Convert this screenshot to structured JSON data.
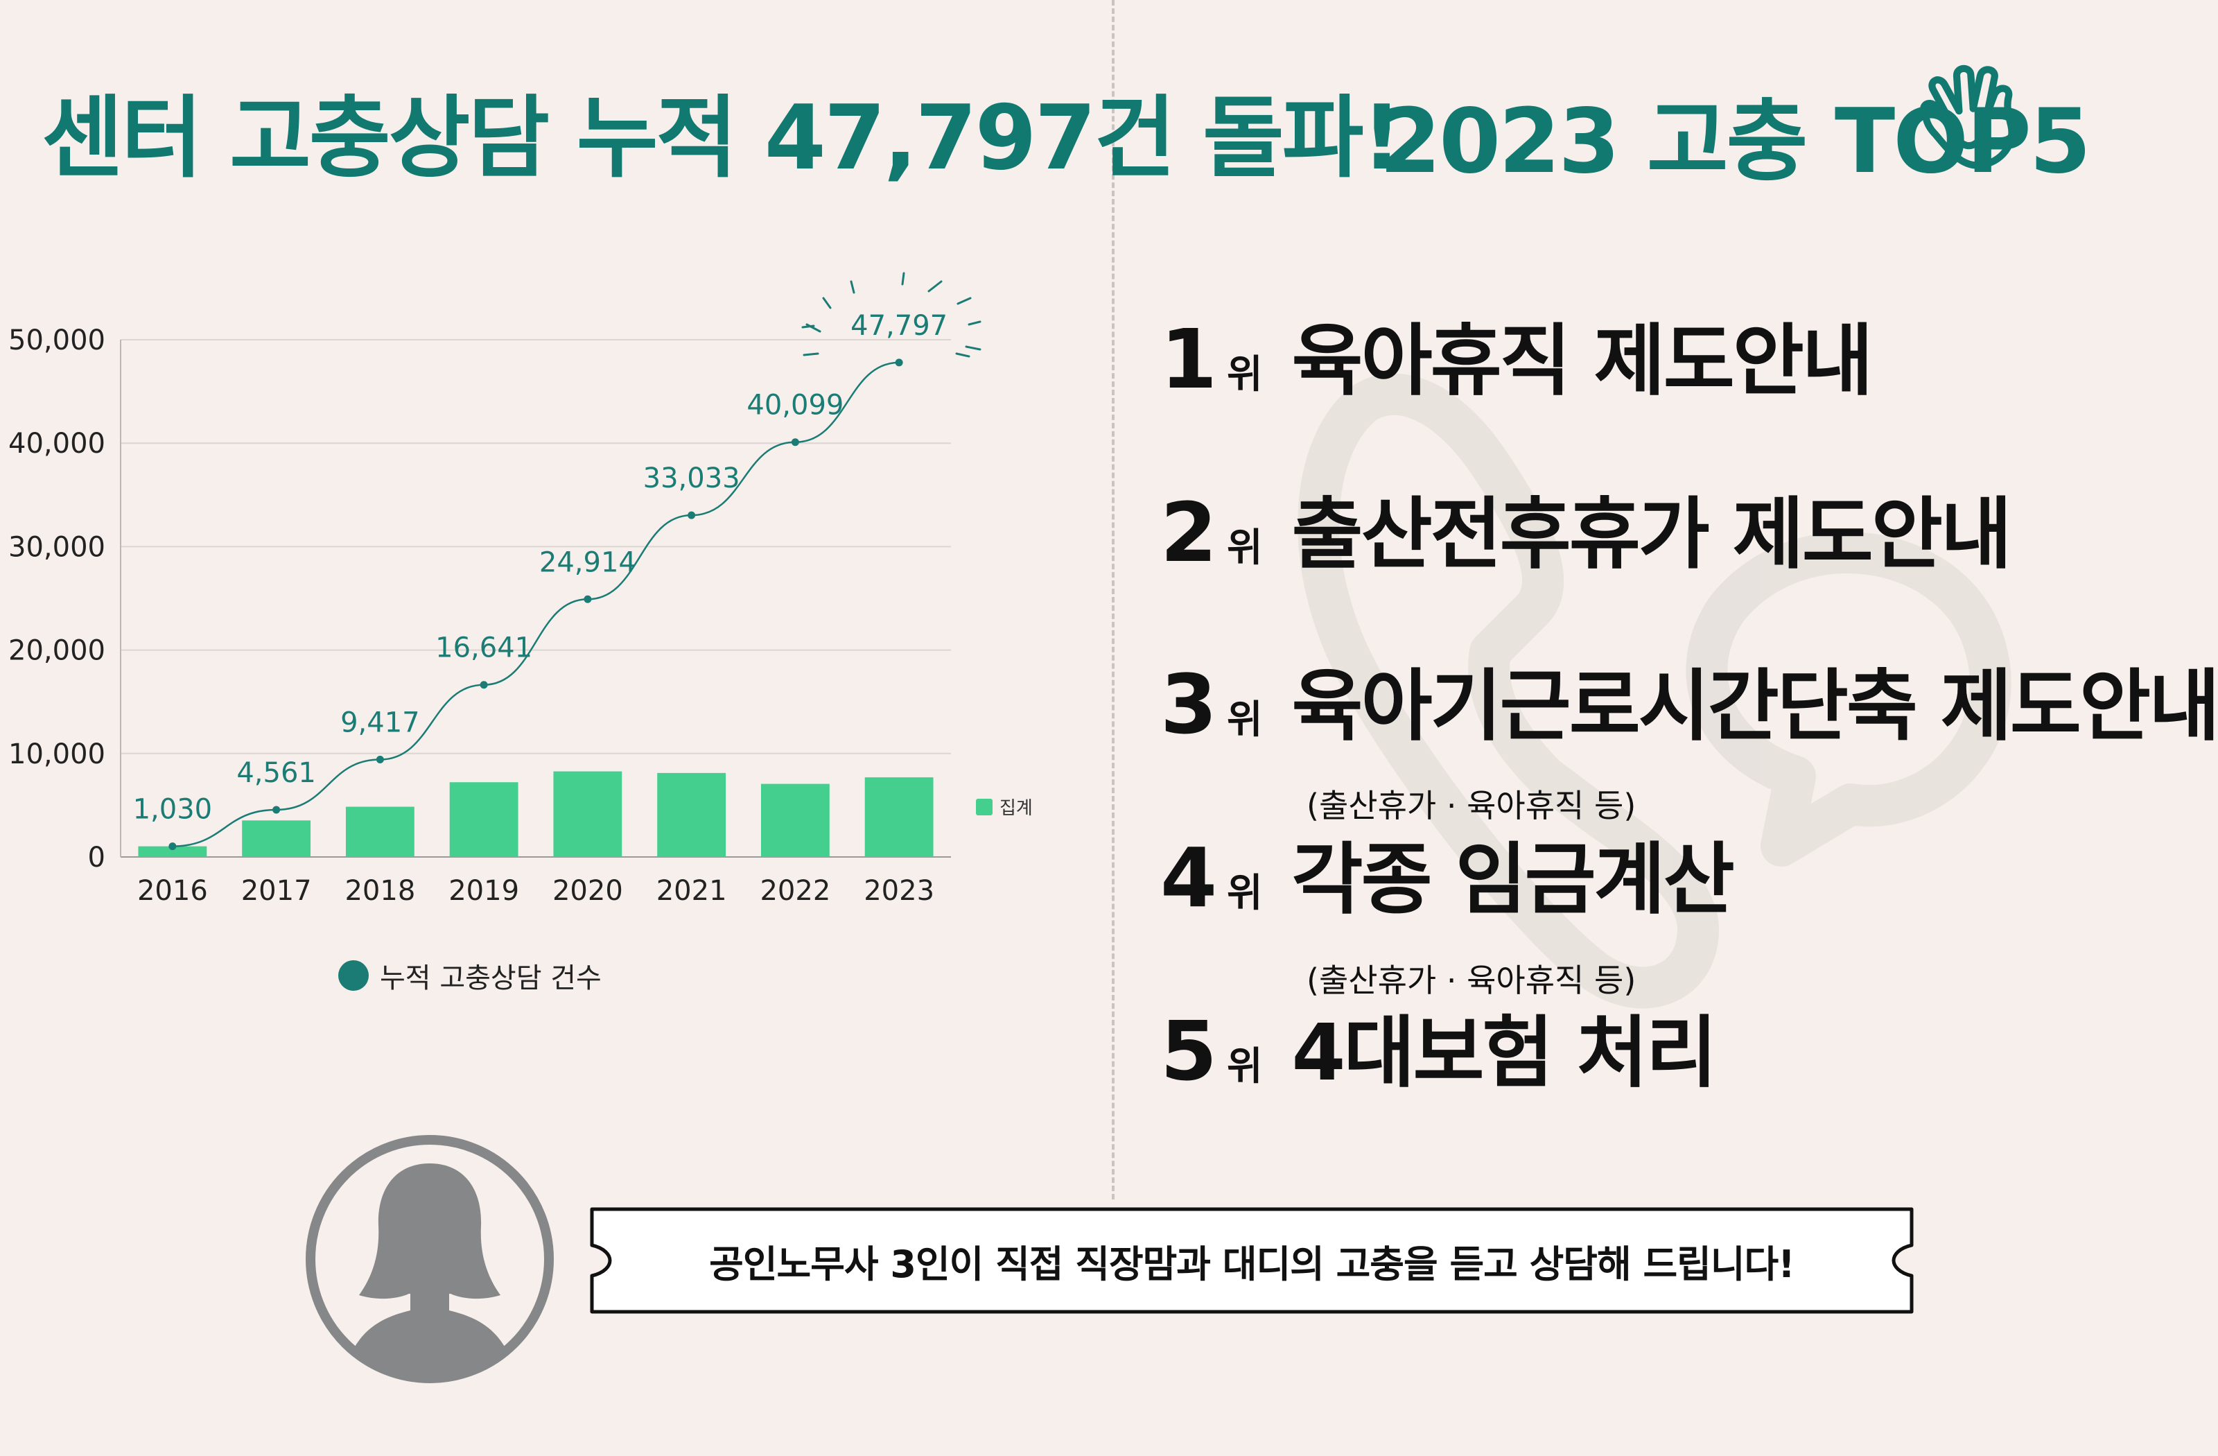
{
  "left_title": "센터 고충상담 누적 47,797건 돌파!",
  "right_title": "2023 고충 TOP5",
  "colors": {
    "teal": "#11796f",
    "bar_green": "#45cf8f",
    "line_teal": "#1a7c74",
    "background": "#f6efec"
  },
  "chart_data": {
    "type": "bar",
    "categories": [
      "2016",
      "2017",
      "2018",
      "2019",
      "2020",
      "2021",
      "2022",
      "2023"
    ],
    "series": [
      {
        "name": "집계",
        "kind": "bar",
        "values": [
          1030,
          3531,
          4856,
          7224,
          8273,
          8119,
          7066,
          7698
        ]
      },
      {
        "name": "누적 고충상담 건수",
        "kind": "line",
        "values": [
          1030,
          4561,
          9417,
          16641,
          24914,
          33033,
          40099,
          47797
        ]
      }
    ],
    "line_labels": [
      "1,030",
      "4,561",
      "9,417",
      "16,641",
      "24,914",
      "33,033",
      "40,099",
      "47,797"
    ],
    "yticks": [
      0,
      10000,
      20000,
      30000,
      40000,
      50000
    ],
    "ytick_labels": [
      "0",
      "10,000",
      "20,000",
      "30,000",
      "40,000",
      "50,000"
    ],
    "ylim": [
      0,
      50000
    ],
    "grid": true,
    "legend_placement": [
      "right",
      "bottom"
    ]
  },
  "ranks": [
    {
      "num": "1",
      "unit": "위",
      "text": "육아휴직 제도안내"
    },
    {
      "num": "2",
      "unit": "위",
      "text": "출산전후휴가 제도안내"
    },
    {
      "num": "3",
      "unit": "위",
      "text": "육아기근로시간단축 제도안내"
    },
    {
      "num": "4",
      "unit": "위",
      "text": "각종 임금계산"
    },
    {
      "num": "5",
      "unit": "위",
      "text": "4대보험 처리"
    }
  ],
  "rank_notes": [
    "(출산휴가 · 육아휴직 등)",
    "(출산휴가 · 육아휴직 등)"
  ],
  "banner_text": "공인노무사 3인이 직접 직장맘과 대디의 고충을 듣고 상담해 드립니다!",
  "icons": {
    "title": "hand-wave-icon",
    "avatar": "woman-avatar-icon"
  }
}
